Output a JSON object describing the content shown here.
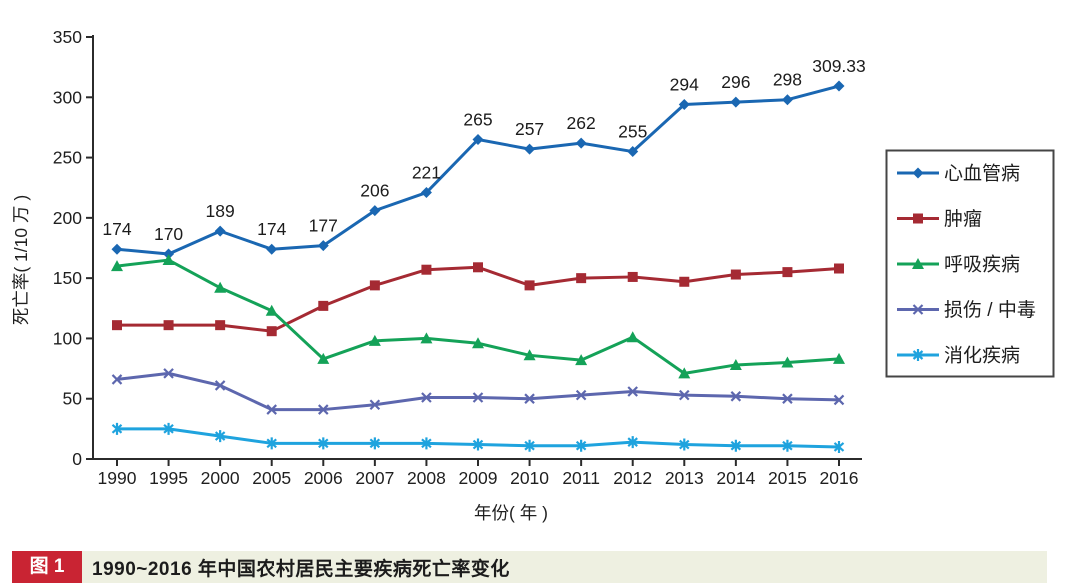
{
  "chart_data": {
    "type": "line",
    "title": "",
    "x_label": "年份( 年 )",
    "y_label": "死亡率( 1/10 万 )",
    "ylim": [
      0,
      350
    ],
    "y_tick_step": 50,
    "y_ticks": [
      0,
      50,
      100,
      150,
      200,
      250,
      300,
      350
    ],
    "grid": "off",
    "legend_position": "right",
    "categories": [
      "1990",
      "1995",
      "2000",
      "2005",
      "2006",
      "2007",
      "2008",
      "2009",
      "2010",
      "2011",
      "2012",
      "2013",
      "2014",
      "2015",
      "2016"
    ],
    "series": [
      {
        "name": "心血管病",
        "marker": "diamond",
        "color": "#1a67b2",
        "show_point_labels": true,
        "values": [
          174,
          170,
          189,
          174,
          177,
          206,
          221,
          265,
          257,
          262,
          255,
          294,
          296,
          298,
          309.33
        ]
      },
      {
        "name": "肿瘤",
        "marker": "square",
        "color": "#a52a33",
        "show_point_labels": false,
        "values": [
          111,
          111,
          111,
          106,
          127,
          144,
          157,
          159,
          144,
          150,
          151,
          147,
          153,
          155,
          158
        ]
      },
      {
        "name": "呼吸疾病",
        "marker": "triangle",
        "color": "#14a258",
        "show_point_labels": false,
        "values": [
          160,
          165,
          142,
          123,
          83,
          98,
          100,
          96,
          86,
          82,
          101,
          71,
          78,
          80,
          83
        ]
      },
      {
        "name": "损伤 / 中毒",
        "marker": "x",
        "color": "#5d67ae",
        "show_point_labels": false,
        "values": [
          66,
          71,
          61,
          41,
          41,
          45,
          51,
          51,
          50,
          53,
          56,
          53,
          52,
          50,
          49
        ]
      },
      {
        "name": "消化疾病",
        "marker": "asterisk",
        "color": "#1fa3de",
        "show_point_labels": false,
        "values": [
          25,
          25,
          19,
          13,
          13,
          13,
          13,
          12,
          11,
          11,
          14,
          12,
          11,
          11,
          10
        ]
      }
    ]
  },
  "caption": {
    "badge": "图 1",
    "text": "1990~2016 年中国农村居民主要疾病死亡率变化"
  },
  "colors": {
    "axis": "#2b2b2b",
    "tick_text": "#1f1f1f",
    "point_label_text": "#1c1c1c",
    "legend_border": "#454545",
    "legend_text": "#1e1e1e",
    "caption_bg": "#eef0e1",
    "caption_badge_bg": "#c92433"
  }
}
